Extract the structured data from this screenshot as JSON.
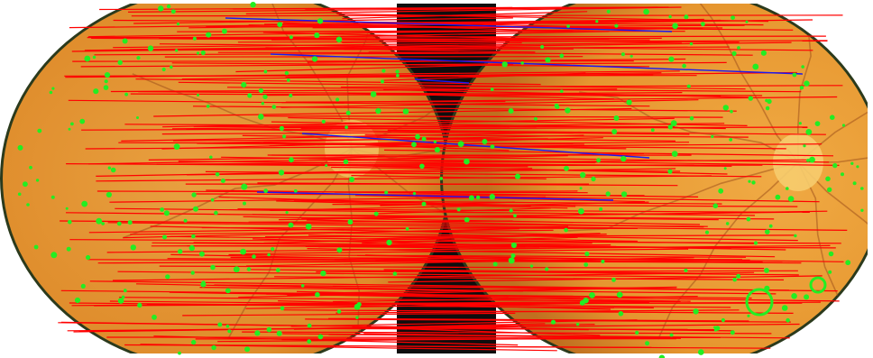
{
  "figure": {
    "description_visible_text": "",
    "colors": {
      "background": "#ffffff",
      "retina_left": "#e0902e",
      "retina_right": "#e89a34",
      "retina_rim": "#2a3a1a",
      "gap": "#111111",
      "keypoint": "#22ee22",
      "match_inlier": "#ff0000",
      "match_outlier": "#1a1aee",
      "vessel": "#a0521b"
    },
    "panels": [
      "left-fundus-image",
      "right-fundus-image"
    ],
    "overlays": [
      "keypoints",
      "inlier-matches",
      "outlier-matches"
    ]
  }
}
